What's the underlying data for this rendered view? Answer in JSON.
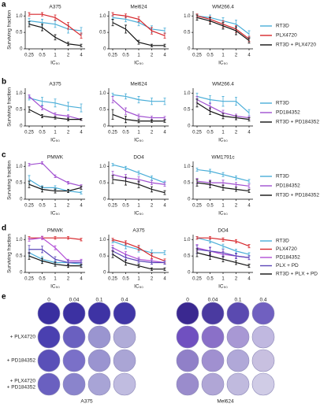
{
  "panel_labels": [
    "a",
    "b",
    "c",
    "d",
    "e"
  ],
  "chart_data": [
    {
      "type": "line",
      "title": "A375",
      "categories": [
        "0.25",
        "0.5",
        "1",
        "2",
        "4"
      ],
      "xlabel": "IC₅₀",
      "ylabel": "Surviving fraction",
      "ylim": [
        0,
        1.15
      ],
      "yticks": [
        0,
        0.5,
        {
          "value": 1,
          "label": "1.0"
        }
      ],
      "series": [
        {
          "name": "RT3D",
          "color": "#4aaed8",
          "values": [
            0.85,
            0.8,
            0.75,
            0.6,
            0.55
          ],
          "errors": [
            0.08,
            0.1,
            0.1,
            0.12,
            0.1
          ]
        },
        {
          "name": "PLX4720",
          "color": "#d7262b",
          "values": [
            1.05,
            1.05,
            0.95,
            0.7,
            0.4
          ],
          "errors": [
            0.05,
            0.05,
            0.08,
            0.1,
            0.08
          ]
        },
        {
          "name": "RT3D + PLX4720",
          "color": "#111111",
          "values": [
            0.75,
            0.65,
            0.35,
            0.15,
            0.1
          ],
          "errors": [
            0.08,
            0.1,
            0.08,
            0.05,
            0.04
          ]
        }
      ]
    },
    {
      "type": "line",
      "title": "Mel624",
      "categories": [
        "0.25",
        "0.5",
        "1",
        "2",
        "4"
      ],
      "xlabel": "IC₅₀",
      "ylim": [
        0,
        1.15
      ],
      "yticks": [
        0,
        0.5,
        {
          "value": 1,
          "label": "1.0"
        }
      ],
      "series": [
        {
          "name": "RT3D",
          "color": "#4aaed8",
          "values": [
            0.95,
            0.9,
            0.8,
            0.6,
            0.55
          ],
          "errors": [
            0.06,
            0.08,
            0.1,
            0.1,
            0.08
          ]
        },
        {
          "name": "PLX4720",
          "color": "#d7262b",
          "values": [
            1.05,
            1.0,
            0.9,
            0.55,
            0.4
          ],
          "errors": [
            0.05,
            0.06,
            0.08,
            0.1,
            0.08
          ]
        },
        {
          "name": "RT3D + PLX4720",
          "color": "#111111",
          "values": [
            0.8,
            0.6,
            0.2,
            0.1,
            0.1
          ],
          "errors": [
            0.1,
            0.12,
            0.06,
            0.04,
            0.04
          ]
        }
      ]
    },
    {
      "type": "line",
      "title": "WM266.4",
      "categories": [
        "0.25",
        "0.5",
        "1",
        "2",
        "4"
      ],
      "xlabel": "IC₅₀",
      "ylim": [
        0,
        1.15
      ],
      "yticks": [
        0,
        0.5,
        {
          "value": 1,
          "label": "1.0"
        }
      ],
      "series": [
        {
          "name": "RT3D",
          "color": "#4aaed8",
          "values": [
            1.0,
            0.95,
            0.85,
            0.75,
            0.45
          ],
          "errors": [
            0.06,
            0.08,
            0.1,
            0.12,
            0.1
          ]
        },
        {
          "name": "PLX4720",
          "color": "#d7262b",
          "values": [
            1.0,
            0.9,
            0.75,
            0.6,
            0.3
          ],
          "errors": [
            0.06,
            0.08,
            0.1,
            0.1,
            0.08
          ]
        },
        {
          "name": "RT3D + PLX4720",
          "color": "#111111",
          "values": [
            0.95,
            0.85,
            0.7,
            0.55,
            0.25
          ],
          "errors": [
            0.08,
            0.1,
            0.1,
            0.12,
            0.08
          ]
        }
      ]
    },
    {
      "type": "line",
      "title": "A375",
      "categories": [
        "0.25",
        "0.5",
        "1",
        "2",
        "4"
      ],
      "xlabel": "IC₅₀",
      "ylabel": "Surviving fraction",
      "ylim": [
        0,
        1.15
      ],
      "yticks": [
        0,
        0.5,
        {
          "value": 1,
          "label": "1.0"
        }
      ],
      "series": [
        {
          "name": "RT3D",
          "color": "#4aaed8",
          "values": [
            0.85,
            0.75,
            0.7,
            0.6,
            0.55
          ],
          "errors": [
            0.06,
            0.12,
            0.12,
            0.12,
            0.12
          ]
        },
        {
          "name": "PD184352",
          "color": "#a04fd0",
          "values": [
            0.9,
            0.55,
            0.35,
            0.3,
            0.2
          ],
          "errors": [
            0.05,
            0.06,
            0.05,
            0.04,
            0.03
          ]
        },
        {
          "name": "RT3D + PD184352",
          "color": "#111111",
          "values": [
            0.5,
            0.3,
            0.25,
            0.2,
            0.2
          ],
          "errors": [
            0.08,
            0.05,
            0.04,
            0.04,
            0.03
          ]
        }
      ]
    },
    {
      "type": "line",
      "title": "Mel624",
      "categories": [
        "0.25",
        "0.5",
        "1",
        "2",
        "4"
      ],
      "xlabel": "IC₅₀",
      "ylim": [
        0,
        1.15
      ],
      "yticks": [
        0,
        0.5,
        {
          "value": 1,
          "label": "1.0"
        }
      ],
      "series": [
        {
          "name": "RT3D",
          "color": "#4aaed8",
          "values": [
            0.95,
            0.9,
            0.8,
            0.75,
            0.75
          ],
          "errors": [
            0.05,
            0.08,
            0.1,
            0.1,
            0.1
          ]
        },
        {
          "name": "PD184352",
          "color": "#a04fd0",
          "values": [
            0.8,
            0.45,
            0.3,
            0.25,
            0.25
          ],
          "errors": [
            0.1,
            0.1,
            0.06,
            0.05,
            0.04
          ]
        },
        {
          "name": "RT3D + PD184352",
          "color": "#111111",
          "values": [
            0.35,
            0.2,
            0.15,
            0.15,
            0.15
          ],
          "errors": [
            0.15,
            0.1,
            0.05,
            0.04,
            0.04
          ]
        }
      ]
    },
    {
      "type": "line",
      "title": "WM266.4",
      "categories": [
        "0.25",
        "0.5",
        "1",
        "2",
        "4"
      ],
      "xlabel": "IC₅₀",
      "ylim": [
        0,
        1.15
      ],
      "yticks": [
        0,
        0.5,
        {
          "value": 1,
          "label": "1.0"
        }
      ],
      "series": [
        {
          "name": "RT3D",
          "color": "#4aaed8",
          "values": [
            0.9,
            0.8,
            0.75,
            0.75,
            0.4
          ],
          "errors": [
            0.1,
            0.12,
            0.15,
            0.12,
            0.1
          ]
        },
        {
          "name": "PD184352",
          "color": "#a04fd0",
          "values": [
            0.8,
            0.6,
            0.4,
            0.3,
            0.25
          ],
          "errors": [
            0.1,
            0.1,
            0.08,
            0.06,
            0.05
          ]
        },
        {
          "name": "RT3D + PD184352",
          "color": "#111111",
          "values": [
            0.7,
            0.45,
            0.3,
            0.25,
            0.2
          ],
          "errors": [
            0.12,
            0.1,
            0.08,
            0.06,
            0.05
          ]
        }
      ]
    },
    {
      "type": "line",
      "title": "PMWK",
      "categories": [
        "0.25",
        "0.5",
        "1",
        "2",
        "4"
      ],
      "xlabel": "IC₅₀",
      "ylabel": "Surviving fraction",
      "ylim": [
        0,
        1.15
      ],
      "yticks": [
        0,
        0.5,
        {
          "value": 1,
          "label": "1.0"
        }
      ],
      "series": [
        {
          "name": "RT3D",
          "color": "#4aaed8",
          "values": [
            0.6,
            0.35,
            0.35,
            0.25,
            0.2
          ],
          "errors": [
            0.12,
            0.06,
            0.06,
            0.05,
            0.04
          ]
        },
        {
          "name": "PD184352",
          "color": "#a04fd0",
          "values": [
            1.05,
            1.1,
            0.7,
            0.5,
            0.4
          ],
          "errors": [
            0.04,
            0.04,
            0.04,
            0.04,
            0.04
          ]
        },
        {
          "name": "RT3D + PD184352",
          "color": "#111111",
          "values": [
            0.45,
            0.3,
            0.25,
            0.25,
            0.35
          ],
          "errors": [
            0.1,
            0.08,
            0.06,
            0.05,
            0.05
          ]
        }
      ]
    },
    {
      "type": "line",
      "title": "DO4",
      "categories": [
        "0.25",
        "0.5",
        "1",
        "2",
        "4"
      ],
      "xlabel": "IC₅₀",
      "ylim": [
        0,
        1.15
      ],
      "yticks": [
        0,
        0.5,
        {
          "value": 1,
          "label": "1.0"
        }
      ],
      "series": [
        {
          "name": "RT3D",
          "color": "#4aaed8",
          "values": [
            1.05,
            0.95,
            0.8,
            0.65,
            0.5
          ],
          "errors": [
            0.04,
            0.05,
            0.06,
            0.06,
            0.05
          ]
        },
        {
          "name": "PD184352",
          "color": "#a04fd0",
          "values": [
            0.75,
            0.65,
            0.6,
            0.5,
            0.45
          ],
          "errors": [
            0.1,
            0.1,
            0.08,
            0.06,
            0.06
          ]
        },
        {
          "name": "RT3D + PD184352",
          "color": "#111111",
          "values": [
            0.6,
            0.55,
            0.45,
            0.3,
            0.2
          ],
          "errors": [
            0.12,
            0.12,
            0.1,
            0.08,
            0.06
          ]
        }
      ]
    },
    {
      "type": "line",
      "title": "WM1791c",
      "categories": [
        "0.25",
        "0.5",
        "1",
        "2",
        "4"
      ],
      "xlabel": "IC₅₀",
      "ylim": [
        0,
        1.15
      ],
      "yticks": [
        0,
        0.5,
        {
          "value": 1,
          "label": "1.0"
        }
      ],
      "series": [
        {
          "name": "RT3D",
          "color": "#4aaed8",
          "values": [
            0.9,
            0.85,
            0.75,
            0.65,
            0.55
          ],
          "errors": [
            0.05,
            0.06,
            0.06,
            0.06,
            0.05
          ]
        },
        {
          "name": "PD184352",
          "color": "#a04fd0",
          "values": [
            0.55,
            0.5,
            0.5,
            0.45,
            0.4
          ],
          "errors": [
            0.08,
            0.08,
            0.08,
            0.06,
            0.06
          ]
        },
        {
          "name": "RT3D + PD184352",
          "color": "#111111",
          "values": [
            0.5,
            0.45,
            0.35,
            0.3,
            0.25
          ],
          "errors": [
            0.1,
            0.1,
            0.08,
            0.06,
            0.05
          ]
        }
      ]
    },
    {
      "type": "line",
      "title": "PMWK",
      "categories": [
        "0.25",
        "0.5",
        "1",
        "2",
        "4"
      ],
      "xlabel": "IC₅₀",
      "ylabel": "Surviving fraction",
      "ylim": [
        0,
        1.15
      ],
      "yticks": [
        0,
        0.5,
        {
          "value": 1,
          "label": "1.0"
        }
      ],
      "series": [
        {
          "name": "RT3D",
          "color": "#4aaed8",
          "values": [
            0.6,
            0.4,
            0.3,
            0.3,
            0.25
          ],
          "errors": [
            0.1,
            0.08,
            0.06,
            0.05,
            0.05
          ]
        },
        {
          "name": "PLX4720",
          "color": "#d7262b",
          "values": [
            1.05,
            1.05,
            1.05,
            1.05,
            1.0
          ],
          "errors": [
            0.04,
            0.04,
            0.04,
            0.04,
            0.04
          ]
        },
        {
          "name": "PD184352",
          "color": "#b24fd6",
          "values": [
            1.0,
            1.05,
            0.75,
            0.35,
            0.35
          ],
          "errors": [
            0.05,
            0.05,
            0.06,
            0.05,
            0.05
          ]
        },
        {
          "name": "PLX + PD",
          "color": "#5b45b8",
          "values": [
            0.7,
            0.7,
            0.4,
            0.3,
            0.3
          ],
          "errors": [
            0.12,
            0.1,
            0.08,
            0.06,
            0.06
          ]
        },
        {
          "name": "RT3D + PLX + PD",
          "color": "#111111",
          "values": [
            0.5,
            0.35,
            0.25,
            0.2,
            0.2
          ],
          "errors": [
            0.1,
            0.08,
            0.06,
            0.05,
            0.05
          ]
        }
      ]
    },
    {
      "type": "line",
      "title": "A375",
      "categories": [
        "0.25",
        "0.5",
        "1",
        "2",
        "4"
      ],
      "xlabel": "IC₅₀",
      "ylim": [
        0,
        1.15
      ],
      "yticks": [
        0,
        0.5,
        {
          "value": 1,
          "label": "1.0"
        }
      ],
      "series": [
        {
          "name": "RT3D",
          "color": "#4aaed8",
          "values": [
            0.95,
            0.8,
            0.7,
            0.6,
            0.6
          ],
          "errors": [
            0.05,
            0.08,
            0.08,
            0.08,
            0.06
          ]
        },
        {
          "name": "PLX4720",
          "color": "#d7262b",
          "values": [
            1.0,
            0.9,
            0.75,
            0.5,
            0.35
          ],
          "errors": [
            0.04,
            0.06,
            0.08,
            0.08,
            0.06
          ]
        },
        {
          "name": "PD184352",
          "color": "#b24fd6",
          "values": [
            0.75,
            0.55,
            0.4,
            0.35,
            0.3
          ],
          "errors": [
            0.08,
            0.08,
            0.06,
            0.05,
            0.05
          ]
        },
        {
          "name": "PLX + PD",
          "color": "#5b45b8",
          "values": [
            0.65,
            0.45,
            0.35,
            0.3,
            0.3
          ],
          "errors": [
            0.1,
            0.08,
            0.06,
            0.05,
            0.05
          ]
        },
        {
          "name": "RT3D + PLX + PD",
          "color": "#111111",
          "values": [
            0.55,
            0.3,
            0.2,
            0.1,
            0.1
          ],
          "errors": [
            0.1,
            0.08,
            0.05,
            0.04,
            0.04
          ]
        }
      ]
    },
    {
      "type": "line",
      "title": "DO4",
      "categories": [
        "0.25",
        "0.5",
        "1",
        "2",
        "4"
      ],
      "xlabel": "IC₅₀",
      "ylim": [
        0,
        1.15
      ],
      "yticks": [
        0,
        0.5,
        {
          "value": 1,
          "label": "1.0"
        }
      ],
      "series": [
        {
          "name": "RT3D",
          "color": "#4aaed8",
          "values": [
            1.05,
            0.95,
            0.8,
            0.65,
            0.55
          ],
          "errors": [
            0.04,
            0.05,
            0.06,
            0.06,
            0.05
          ]
        },
        {
          "name": "PLX4720",
          "color": "#d7262b",
          "values": [
            1.05,
            1.05,
            1.0,
            0.95,
            0.8
          ],
          "errors": [
            0.04,
            0.04,
            0.05,
            0.05,
            0.05
          ]
        },
        {
          "name": "PD184352",
          "color": "#b24fd6",
          "values": [
            0.75,
            0.65,
            0.55,
            0.5,
            0.45
          ],
          "errors": [
            0.1,
            0.1,
            0.08,
            0.06,
            0.06
          ]
        },
        {
          "name": "PLX + PD",
          "color": "#5b45b8",
          "values": [
            0.7,
            0.65,
            0.6,
            0.5,
            0.45
          ],
          "errors": [
            0.12,
            0.12,
            0.1,
            0.08,
            0.06
          ]
        },
        {
          "name": "RT3D + PLX + PD",
          "color": "#111111",
          "values": [
            0.6,
            0.5,
            0.4,
            0.3,
            0.2
          ],
          "errors": [
            0.12,
            0.1,
            0.08,
            0.06,
            0.05
          ]
        }
      ]
    }
  ],
  "panel_e": {
    "concentrations": [
      "0",
      "0.04",
      "0.1",
      "0.4"
    ],
    "row_labels": [
      [
        "+ PLX4720"
      ],
      [
        "+ PD184352"
      ],
      [
        "+ PLX4720",
        "+ PD184352"
      ]
    ],
    "cell_lines": [
      "A375",
      "Mel624"
    ]
  }
}
